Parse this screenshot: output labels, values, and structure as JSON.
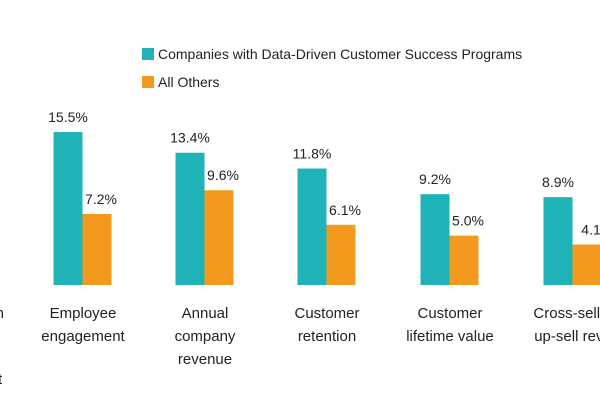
{
  "chart_data": {
    "type": "bar",
    "categories": [
      [
        "t in",
        ""
      ],
      [
        "Employee",
        "engagement"
      ],
      [
        "Annual",
        "company",
        "revenue"
      ],
      [
        "Customer",
        "retention"
      ],
      [
        "Customer",
        "lifetime value"
      ],
      [
        "Cross-sell a",
        "up-sell reve"
      ]
    ],
    "series": [
      {
        "name": "Companies with Data-Driven Customer Success Programs",
        "color": "#1fb3b8",
        "values": [
          null,
          15.5,
          13.4,
          11.8,
          9.2,
          8.9
        ],
        "labels": [
          "",
          "15.5%",
          "13.4%",
          "11.8%",
          "9.2%",
          "8.9%"
        ]
      },
      {
        "name": "All Others",
        "color": "#f39a1e",
        "values": [
          null,
          7.2,
          9.6,
          6.1,
          5.0,
          4.1
        ],
        "labels": [
          "",
          "7.2%",
          "9.6%",
          "6.1%",
          "5.0%",
          "4.1"
        ]
      }
    ],
    "ylim": [
      0,
      16
    ],
    "grid": false,
    "legend_position": "top",
    "extra_text": [
      "t"
    ]
  }
}
